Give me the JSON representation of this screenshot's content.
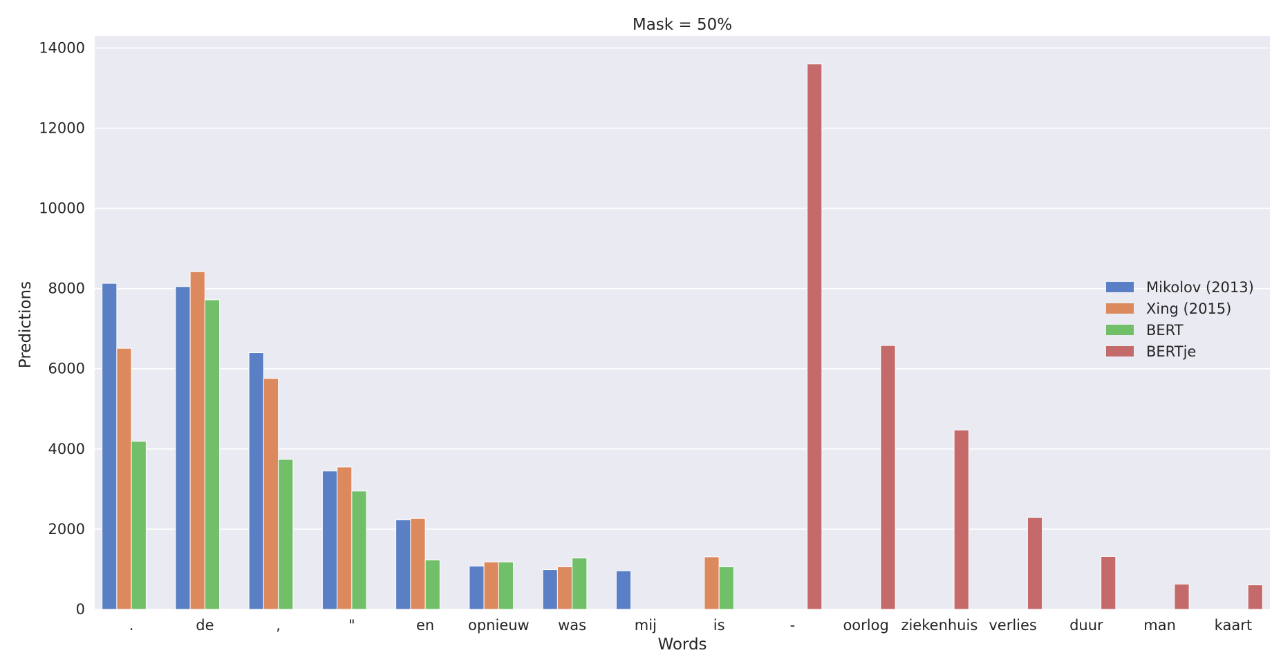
{
  "chart_data": {
    "type": "bar",
    "title": "Mask = 50%",
    "xlabel": "Words",
    "ylabel": "Predictions",
    "ylim": [
      0,
      14300
    ],
    "yticks": [
      0,
      2000,
      4000,
      6000,
      8000,
      10000,
      12000,
      14000
    ],
    "grid": true,
    "legend_position": "right",
    "categories": [
      ".",
      "de",
      ",",
      "\"",
      "en",
      "opnieuw",
      "was",
      "mij",
      "is",
      "-",
      "oorlog",
      "ziekenhuis",
      "verlies",
      "duur",
      "man",
      "kaart"
    ],
    "series": [
      {
        "name": "Mikolov (2013)",
        "color": "#5a7fc5",
        "values": [
          8130,
          8050,
          6400,
          3450,
          2230,
          1080,
          990,
          960,
          0,
          0,
          0,
          0,
          0,
          0,
          0,
          0
        ]
      },
      {
        "name": "Xing (2015)",
        "color": "#dc8a5d",
        "values": [
          6510,
          8420,
          5760,
          3550,
          2270,
          1180,
          1060,
          0,
          1310,
          0,
          0,
          0,
          0,
          0,
          0,
          0
        ]
      },
      {
        "name": "BERT",
        "color": "#72bf6a",
        "values": [
          4190,
          7720,
          3740,
          2950,
          1230,
          1180,
          1280,
          0,
          1060,
          0,
          0,
          0,
          0,
          0,
          0,
          0
        ]
      },
      {
        "name": "BERTje",
        "color": "#c56a6b",
        "values": [
          0,
          0,
          0,
          0,
          0,
          0,
          0,
          0,
          0,
          13600,
          6580,
          4470,
          2290,
          1320,
          630,
          610
        ]
      }
    ]
  }
}
